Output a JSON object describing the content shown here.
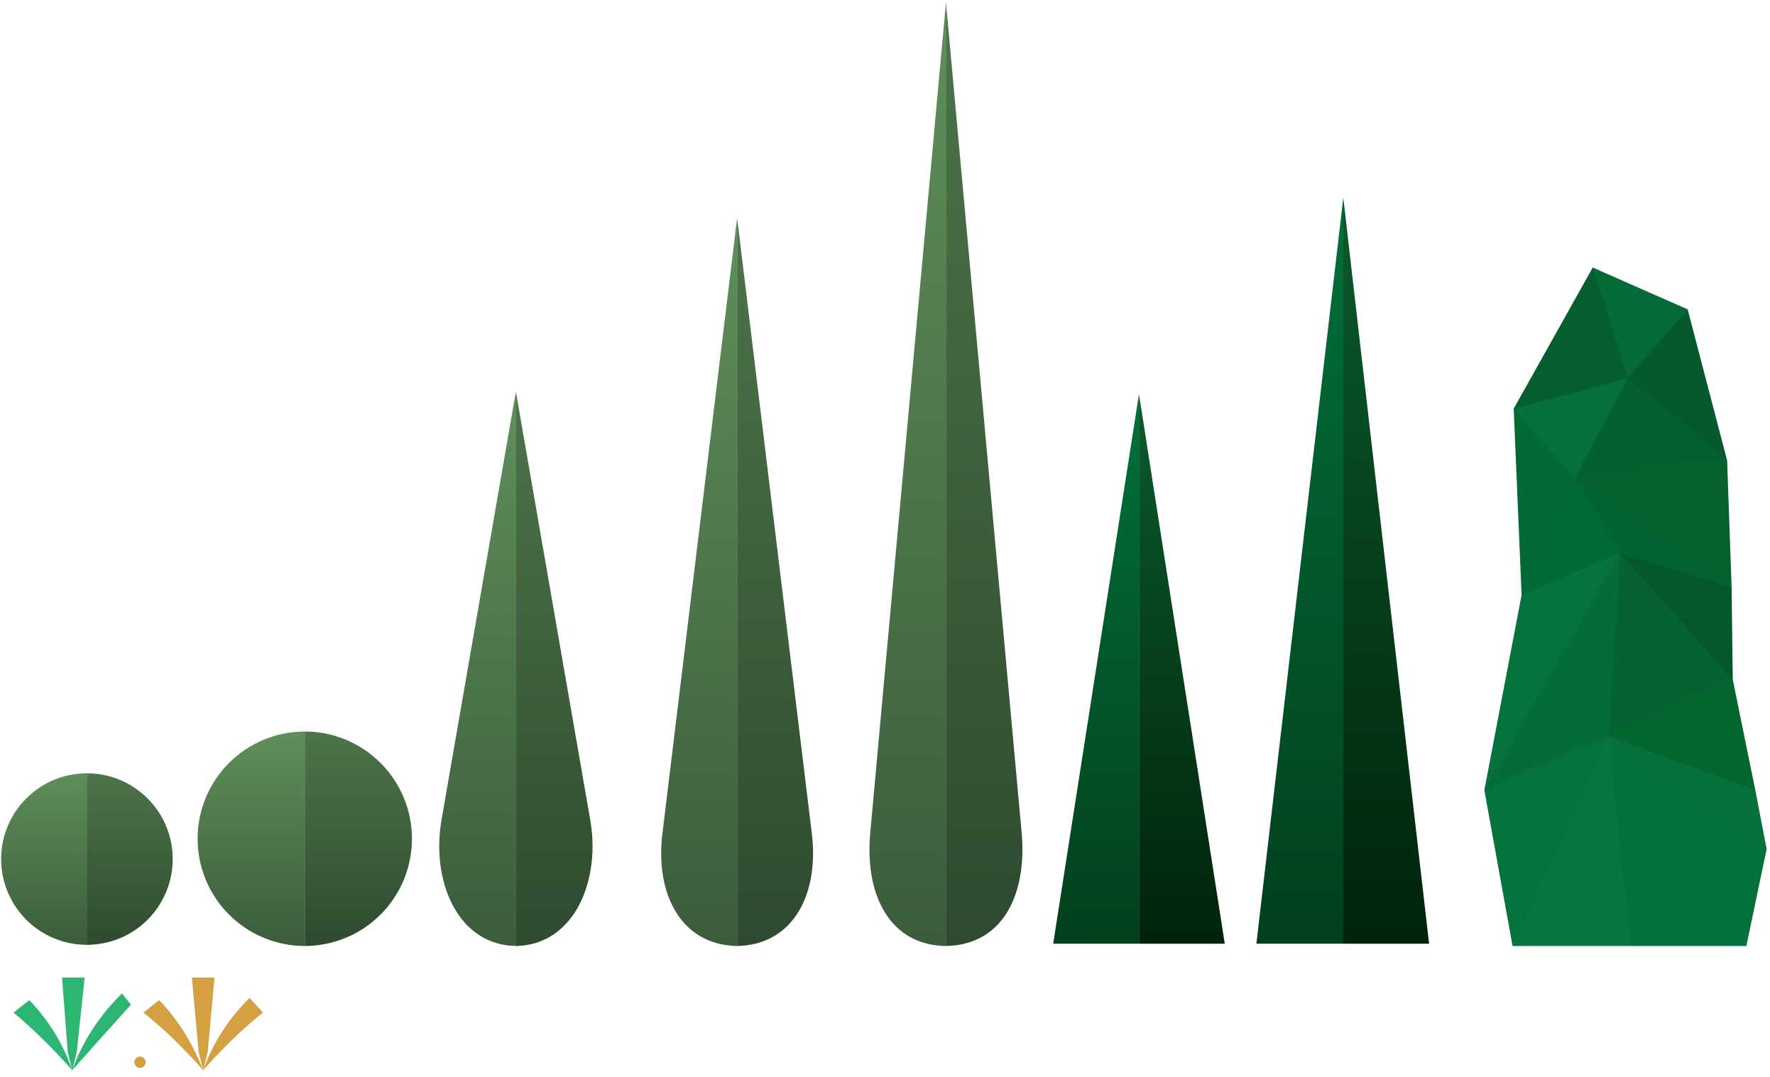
{
  "background_color": "#ffffff",
  "palette": {
    "sage_light": "#5c8a58",
    "sage_mid": "#456b44",
    "sage_dark": "#2f4a2f",
    "forest_light": "#026b36",
    "forest_mid": "#045a2c",
    "forest_dark": "#002a0c",
    "sprout_green": "#2bb673",
    "sprout_gold": "#d4a041"
  },
  "shapes": [
    {
      "name": "small-round-shrub-shape",
      "kind": "round",
      "tone": "sage"
    },
    {
      "name": "large-round-shrub-shape",
      "kind": "round",
      "tone": "sage"
    },
    {
      "name": "short-teardrop-cypress-shape",
      "kind": "teardrop",
      "tone": "sage"
    },
    {
      "name": "medium-teardrop-cypress-shape",
      "kind": "teardrop",
      "tone": "sage"
    },
    {
      "name": "tall-teardrop-cypress-shape",
      "kind": "teardrop",
      "tone": "sage"
    },
    {
      "name": "short-cone-tree-shape",
      "kind": "cone",
      "tone": "forest"
    },
    {
      "name": "tall-cone-tree-shape",
      "kind": "cone",
      "tone": "forest"
    },
    {
      "name": "faceted-rock-tree-shape",
      "kind": "faceted",
      "tone": "forest"
    }
  ],
  "sprouts": [
    {
      "name": "green-sprout-icon",
      "color": "sprout_green"
    },
    {
      "name": "gold-sprout-icon",
      "color": "sprout_gold"
    }
  ]
}
